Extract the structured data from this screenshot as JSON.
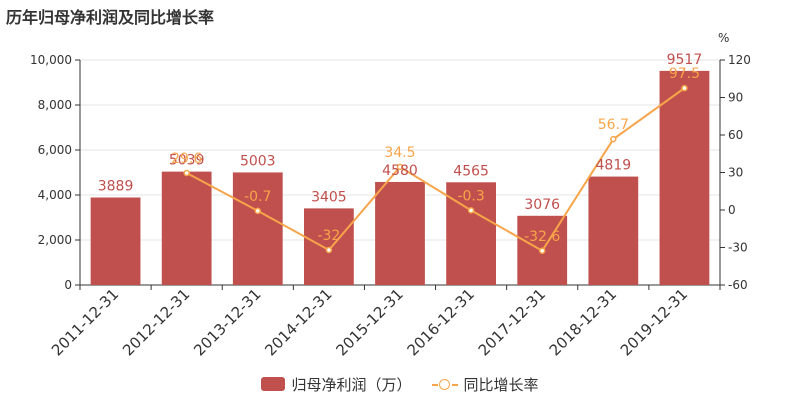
{
  "title": "历年归母净利润及同比增长率",
  "legend": {
    "bar_label": "归母净利润（万）",
    "line_label": "同比增长率"
  },
  "colors": {
    "bar": "#c0504d",
    "bar_label": "#c0504d",
    "line": "#f7a54a",
    "axis_text": "#333333",
    "grid": "#e6e6e6"
  },
  "chart_data": {
    "type": "bar",
    "categories": [
      "2011-12-31",
      "2012-12-31",
      "2013-12-31",
      "2014-12-31",
      "2015-12-31",
      "2016-12-31",
      "2017-12-31",
      "2018-12-31",
      "2019-12-31"
    ],
    "series": [
      {
        "name": "归母净利润（万）",
        "type": "bar",
        "axis": "left",
        "values": [
          3889,
          5039,
          5003,
          3405,
          4580,
          4565,
          3076,
          4819,
          9517
        ],
        "labels": [
          "3889",
          "5039",
          "5003",
          "3405",
          "4580",
          "4565",
          "3076",
          "4819",
          "9517"
        ]
      },
      {
        "name": "同比增长率",
        "type": "line",
        "axis": "right",
        "values": [
          null,
          29.6,
          -0.7,
          -32,
          34.5,
          -0.3,
          -32.6,
          56.7,
          97.5
        ],
        "labels": [
          "",
          "29.6",
          "-0.7",
          "-32",
          "34.5",
          "-0.3",
          "-32.6",
          "56.7",
          "97.5"
        ]
      }
    ],
    "y_left": {
      "ylim": [
        0,
        10000
      ],
      "ticks": [
        0,
        2000,
        4000,
        6000,
        8000,
        10000
      ],
      "tick_labels": [
        "0",
        "2,000",
        "4,000",
        "6,000",
        "8,000",
        "10,000"
      ]
    },
    "y_right": {
      "ylim": [
        -60,
        120
      ],
      "ticks": [
        -60,
        -30,
        0,
        30,
        60,
        90,
        120
      ],
      "tick_labels": [
        "-60",
        "-30",
        "0",
        "30",
        "60",
        "90",
        "120"
      ],
      "unit": "%"
    },
    "grid": true,
    "legend_position": "bottom-center"
  }
}
